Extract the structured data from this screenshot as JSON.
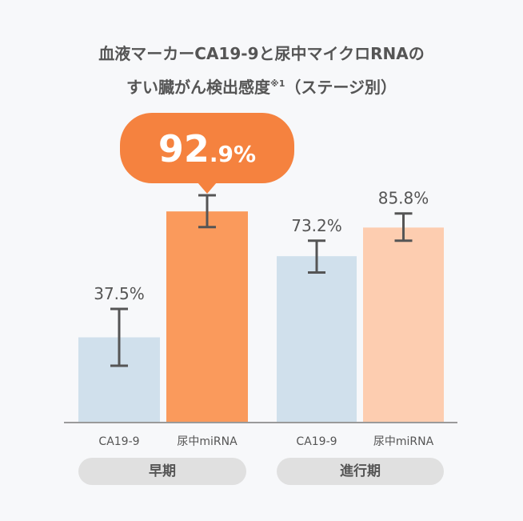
{
  "title": {
    "line1": "血液マーカーCA19-9と尿中マイクロRNAの",
    "line2_main": "すい臓がん検出感度",
    "line2_sup": "※1",
    "line2_tail": "（ステージ別）"
  },
  "highlight": {
    "integer": "92",
    "decimal": ".9%"
  },
  "groups": [
    {
      "label": "早期"
    },
    {
      "label": "進行期"
    }
  ],
  "colors": {
    "ca_early": "#d0e0ec",
    "mirna_early": "#fa9a5c",
    "ca_adv": "#d0e0ec",
    "mirna_adv": "#fdcdb0",
    "callout": "#f5823f",
    "errorbar": "#555555",
    "baseline": "#9a9a9a"
  },
  "chart_data": {
    "type": "bar",
    "title": "血液マーカーCA19-9と尿中マイクロRNAのすい臓がん検出感度※1（ステージ別）",
    "groups": [
      "早期",
      "進行期"
    ],
    "bars": [
      {
        "group": "早期",
        "category": "CA19-9",
        "value": 37.5,
        "label": "37.5%",
        "err_low": 25,
        "err_high": 50
      },
      {
        "group": "早期",
        "category": "尿中miRNA",
        "value": 92.9,
        "label": "92.9%",
        "err_low": 86,
        "err_high": 100
      },
      {
        "group": "進行期",
        "category": "CA19-9",
        "value": 73.2,
        "label": "73.2%",
        "err_low": 66,
        "err_high": 80
      },
      {
        "group": "進行期",
        "category": "尿中miRNA",
        "value": 85.8,
        "label": "85.8%",
        "err_low": 80,
        "err_high": 92
      }
    ],
    "ylim": [
      0,
      100
    ],
    "grid": false,
    "legend": "none"
  }
}
